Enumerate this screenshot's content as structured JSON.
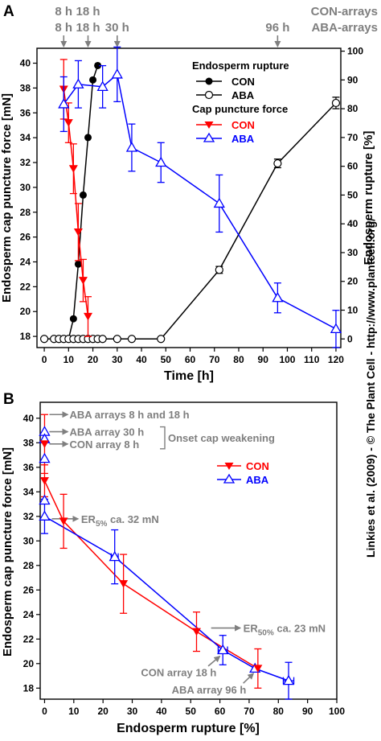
{
  "colors": {
    "black": "#000000",
    "red": "#ff0000",
    "blue": "#0000ff",
    "gray": "#7f7f7f"
  },
  "credit": "Linkies et al. (2009) - © The Plant Cell - http://www.plantcell.org/",
  "chart_data": [
    {
      "panel": "A",
      "type": "line",
      "xlabel": "Time [h]",
      "ylabel_left": "Endosperm cap puncture force [mN]",
      "ylabel_right": "Endosperm rupture [%]",
      "xlim": [
        -3,
        122
      ],
      "ylim_left": [
        17.1,
        41.2
      ],
      "ylim_right": [
        -3,
        101
      ],
      "xticks": [
        "0",
        "10",
        "20",
        "30",
        "40",
        "50",
        "60",
        "70",
        "80",
        "90",
        "100",
        "110",
        "120"
      ],
      "yticks_left": [
        "18",
        "20",
        "22",
        "24",
        "26",
        "28",
        "30",
        "32",
        "34",
        "36",
        "38",
        "40"
      ],
      "yticks_right": [
        "0",
        "10",
        "20",
        "30",
        "40",
        "50",
        "60",
        "70",
        "80",
        "90",
        "100"
      ],
      "grid": false,
      "legend_position": "upper-right",
      "legend": {
        "group1_title": "Endosperm rupture",
        "group2_title": "Cap puncture force",
        "con": "CON",
        "aba": "ABA"
      },
      "top_annotations": [
        {
          "x": 8,
          "line1": "8 h",
          "line2": "8 h"
        },
        {
          "x": 18,
          "line1": "18 h",
          "line2": "18 h"
        },
        {
          "x": 30,
          "line1": "",
          "line2": "30 h"
        },
        {
          "x": 96,
          "line1": "",
          "line2": "96 h"
        }
      ],
      "array_labels": {
        "line1": "CON-arrays",
        "line2": "ABA-arrays"
      },
      "series": [
        {
          "name": "CON",
          "group": "Endosperm rupture",
          "axis": "right",
          "color": "#000000",
          "marker": "filled-circle",
          "x": [
            0,
            4,
            6,
            8,
            10,
            12,
            14,
            16,
            18,
            20,
            22
          ],
          "y": [
            0,
            0,
            0,
            0,
            0,
            7,
            26,
            50,
            70,
            90,
            95
          ]
        },
        {
          "name": "ABA",
          "group": "Endosperm rupture",
          "axis": "right",
          "color": "#000000",
          "marker": "open-circle",
          "x": [
            0,
            4,
            6,
            8,
            10,
            12,
            14,
            16,
            18,
            20,
            22,
            24,
            30,
            36,
            48,
            72,
            96,
            120
          ],
          "y": [
            0,
            0,
            0,
            0,
            0,
            0,
            0,
            0,
            0,
            0,
            0,
            0,
            0,
            0,
            0,
            24,
            61,
            82
          ],
          "err": [
            0,
            0,
            0,
            0,
            0,
            0,
            0,
            0,
            0,
            0,
            0,
            0,
            0,
            0,
            0,
            1.2,
            1.5,
            2
          ]
        },
        {
          "name": "CON",
          "group": "Cap puncture force",
          "axis": "left",
          "color": "#ff0000",
          "marker": "filled-triangle-down",
          "x": [
            8,
            10,
            12,
            14,
            16,
            18
          ],
          "y": [
            37.9,
            35.2,
            31.5,
            26.4,
            22.5,
            19.6
          ],
          "err": [
            2.4,
            1.6,
            2,
            2.3,
            1.7,
            1.6
          ]
        },
        {
          "name": "ABA",
          "group": "Cap puncture force",
          "axis": "left",
          "color": "#0000ff",
          "marker": "open-triangle-up",
          "x": [
            8,
            14,
            24,
            30,
            36,
            48,
            72,
            96,
            120
          ],
          "y": [
            36.7,
            38.3,
            38.1,
            39.1,
            33.2,
            32,
            28.7,
            21.1,
            18.6
          ],
          "err": [
            2.2,
            1.9,
            1.7,
            2.2,
            1.9,
            1.6,
            2.3,
            1.2,
            1.5
          ]
        }
      ]
    },
    {
      "panel": "B",
      "type": "line",
      "xlabel": "Endosperm rupture [%]",
      "ylabel": "Endosperm cap puncture force [mN]",
      "xlim": [
        -1.5,
        100
      ],
      "ylim": [
        17.1,
        41.3
      ],
      "xticks": [
        "0",
        "10",
        "20",
        "30",
        "40",
        "50",
        "60",
        "70",
        "80",
        "90",
        "100"
      ],
      "yticks": [
        "18",
        "20",
        "22",
        "24",
        "26",
        "28",
        "30",
        "32",
        "34",
        "36",
        "38",
        "40"
      ],
      "grid": false,
      "legend_position": "right",
      "series": [
        {
          "name": "CON",
          "color": "#ff0000",
          "marker": "filled-triangle-down",
          "x": [
            0,
            0,
            6.5,
            27,
            52,
            73
          ],
          "y": [
            37.9,
            34.9,
            31.6,
            26.5,
            22.6,
            19.6
          ],
          "yerr": [
            2.4,
            1.3,
            2.2,
            2.4,
            1.6,
            1.6
          ],
          "xerr": [
            0,
            0,
            0,
            0,
            0,
            0
          ]
        },
        {
          "name": "ABA",
          "color": "#0000ff",
          "marker": "open-triangle-up",
          "x": [
            0,
            0,
            0,
            0,
            0,
            24,
            61,
            72,
            83.5
          ],
          "y": [
            38.9,
            38.3,
            36.7,
            33.3,
            32,
            28.7,
            21.1,
            19.6,
            18.6
          ],
          "yerr": [
            0,
            0,
            0,
            0,
            1.4,
            2.2,
            1.2,
            0,
            1.5
          ],
          "xerr": [
            0,
            0,
            0,
            0,
            0,
            1.2,
            1.6,
            0,
            1.8
          ]
        }
      ],
      "annotations": {
        "aba_arrays": "ABA arrays 8 h and 18 h",
        "aba_30": "ABA array 30 h",
        "con_8": "CON array 8 h",
        "onset": "Onset cap weakening",
        "er5_main": "ER",
        "er5_sub": "5%",
        "er5_tail": " ca. 32 mN",
        "er50_main": "ER",
        "er50_sub": "50%",
        "er50_tail": " ca. 23 mN",
        "con_18": "CON array 18 h",
        "aba_96": "ABA array 96 h"
      }
    }
  ]
}
